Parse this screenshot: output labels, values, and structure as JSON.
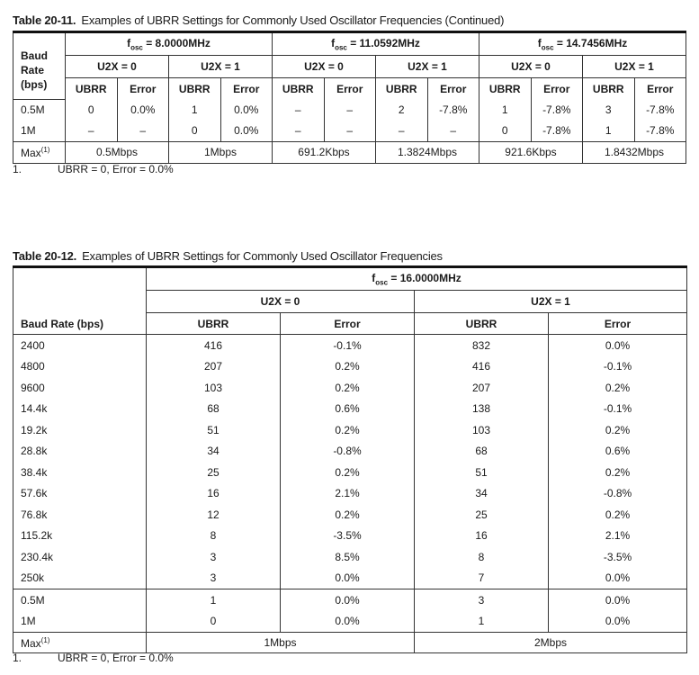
{
  "table1": {
    "number": "Table 20-11.",
    "caption": "Examples of UBRR Settings for Commonly Used Oscillator Frequencies  (Continued)",
    "baud_header": [
      "Baud",
      "Rate",
      "(bps)"
    ],
    "osc": [
      {
        "f": "f",
        "sub": "osc",
        "val": " = 8.0000MHz"
      },
      {
        "f": "f",
        "sub": "osc",
        "val": " = 11.0592MHz"
      },
      {
        "f": "f",
        "sub": "osc",
        "val": " = 14.7456MHz"
      }
    ],
    "u2x": [
      "U2X = 0",
      "U2X = 1",
      "U2X = 0",
      "U2X = 1",
      "U2X = 0",
      "U2X = 1"
    ],
    "cols": [
      "UBRR",
      "Error",
      "UBRR",
      "Error",
      "UBRR",
      "Error",
      "UBRR",
      "Error",
      "UBRR",
      "Error",
      "UBRR",
      "Error"
    ],
    "rows": [
      {
        "baud": "0.5M",
        "cells": [
          "0",
          "0.0%",
          "1",
          "0.0%",
          "–",
          "–",
          "2",
          "-7.8%",
          "1",
          "-7.8%",
          "3",
          "-7.8%"
        ]
      },
      {
        "baud": "1M",
        "cells": [
          "–",
          "–",
          "0",
          "0.0%",
          "–",
          "–",
          "–",
          "–",
          "0",
          "-7.8%",
          "1",
          "-7.8%"
        ]
      }
    ],
    "max_label": "Max",
    "max_sup": "(1)",
    "max": [
      "0.5Mbps",
      "1Mbps",
      "691.2Kbps",
      "1.3824Mbps",
      "921.6Kbps",
      "1.8432Mbps"
    ],
    "footnote_num": "1.",
    "footnote": "UBRR = 0, Error = 0.0%"
  },
  "table2": {
    "number": "Table 20-12.",
    "caption": "Examples of UBRR Settings for Commonly Used Oscillator Frequencies",
    "baud_header": "Baud Rate (bps)",
    "osc": {
      "f": "f",
      "sub": "osc",
      "val": " = 16.0000MHz"
    },
    "u2x": [
      "U2X = 0",
      "U2X = 1"
    ],
    "cols": [
      "UBRR",
      "Error",
      "UBRR",
      "Error"
    ],
    "rows": [
      {
        "baud": "2400",
        "cells": [
          "416",
          "-0.1%",
          "832",
          "0.0%"
        ]
      },
      {
        "baud": "4800",
        "cells": [
          "207",
          "0.2%",
          "416",
          "-0.1%"
        ]
      },
      {
        "baud": "9600",
        "cells": [
          "103",
          "0.2%",
          "207",
          "0.2%"
        ]
      },
      {
        "baud": "14.4k",
        "cells": [
          "68",
          "0.6%",
          "138",
          "-0.1%"
        ]
      },
      {
        "baud": "19.2k",
        "cells": [
          "51",
          "0.2%",
          "103",
          "0.2%"
        ]
      },
      {
        "baud": "28.8k",
        "cells": [
          "34",
          "-0.8%",
          "68",
          "0.6%"
        ]
      },
      {
        "baud": "38.4k",
        "cells": [
          "25",
          "0.2%",
          "51",
          "0.2%"
        ]
      },
      {
        "baud": "57.6k",
        "cells": [
          "16",
          "2.1%",
          "34",
          "-0.8%"
        ]
      },
      {
        "baud": "76.8k",
        "cells": [
          "12",
          "0.2%",
          "25",
          "0.2%"
        ]
      },
      {
        "baud": "115.2k",
        "cells": [
          "8",
          "-3.5%",
          "16",
          "2.1%"
        ]
      },
      {
        "baud": "230.4k",
        "cells": [
          "3",
          "8.5%",
          "8",
          "-3.5%"
        ]
      },
      {
        "baud": "250k",
        "cells": [
          "3",
          "0.0%",
          "7",
          "0.0%"
        ]
      },
      {
        "baud": "0.5M",
        "cells": [
          "1",
          "0.0%",
          "3",
          "0.0%"
        ]
      },
      {
        "baud": "1M",
        "cells": [
          "0",
          "0.0%",
          "1",
          "0.0%"
        ]
      }
    ],
    "max_label": "Max",
    "max_sup": "(1)",
    "max": [
      "1Mbps",
      "2Mbps"
    ],
    "footnote_num": "1.",
    "footnote": "UBRR = 0, Error = 0.0%"
  }
}
